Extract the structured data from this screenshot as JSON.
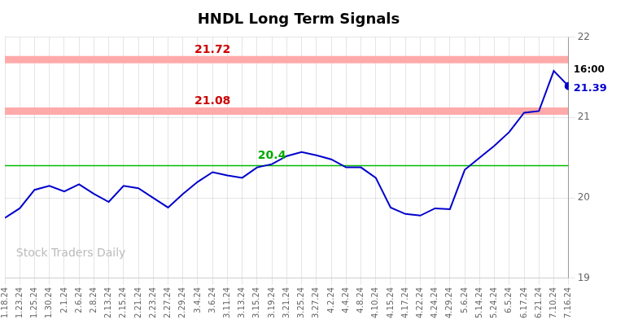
{
  "chart_data": {
    "type": "line",
    "title": "HNDL Long Term Signals",
    "categories": [
      "1.18.24",
      "1.23.24",
      "1.25.24",
      "1.30.24",
      "2.1.24",
      "2.6.24",
      "2.8.24",
      "2.13.24",
      "2.15.24",
      "2.21.24",
      "2.23.24",
      "2.27.24",
      "2.29.24",
      "3.4.24",
      "3.6.24",
      "3.11.24",
      "3.13.24",
      "3.15.24",
      "3.19.24",
      "3.21.24",
      "3.25.24",
      "3.27.24",
      "4.2.24",
      "4.4.24",
      "4.8.24",
      "4.10.24",
      "4.15.24",
      "4.17.24",
      "4.22.24",
      "4.24.24",
      "4.29.24",
      "5.6.24",
      "5.14.24",
      "5.24.24",
      "6.5.24",
      "6.17.24",
      "6.21.24",
      "7.10.24",
      "7.16.24"
    ],
    "values": [
      19.75,
      19.87,
      20.1,
      20.15,
      20.08,
      20.17,
      20.05,
      19.95,
      20.15,
      20.12,
      20.0,
      19.88,
      20.05,
      20.2,
      20.32,
      20.28,
      20.25,
      20.38,
      20.42,
      20.52,
      20.57,
      20.53,
      20.48,
      20.38,
      20.38,
      20.25,
      19.88,
      19.8,
      19.78,
      19.87,
      19.86,
      20.35,
      20.5,
      20.65,
      20.82,
      21.06,
      21.08,
      21.58,
      21.39
    ],
    "color": "#0000cc",
    "ylim": [
      19,
      22
    ],
    "yticks": [
      19,
      20,
      21,
      22
    ],
    "grid": true,
    "hlines": [
      {
        "y": 21.08,
        "color": "#ffaaaa",
        "label": "21.08",
        "label_color": "#cc0000",
        "label_x": "3.6.24"
      },
      {
        "y": 21.72,
        "color": "#ffaaaa",
        "label": "21.72",
        "label_color": "#cc0000",
        "label_x": "3.6.24"
      },
      {
        "y": 20.4,
        "color": "#00bb00",
        "label": "20.4",
        "label_color": "#00aa00",
        "label_x": "3.19.24"
      }
    ],
    "annotations": [
      {
        "text": "16:00",
        "x": "7.16.24",
        "y": 21.39,
        "color": "#000000",
        "position": "above"
      },
      {
        "text": "21.39",
        "x": "7.16.24",
        "y": 21.39,
        "color": "#0000cc",
        "position": "below"
      }
    ],
    "watermark": "Stock Traders Daily"
  }
}
